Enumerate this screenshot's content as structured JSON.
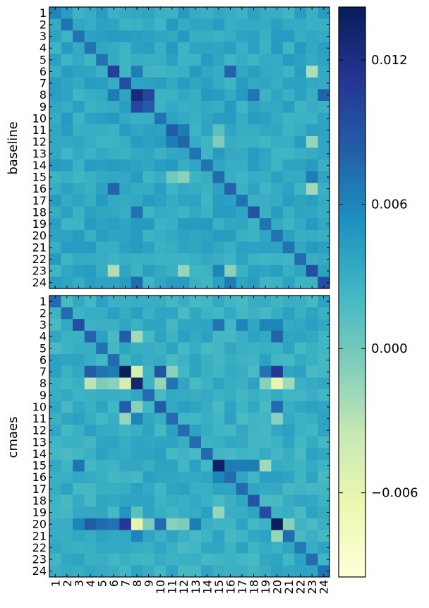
{
  "chart_data": {
    "type": "heatmap",
    "colormap": "YlGnBu",
    "vmin": -0.0095,
    "vmax": 0.0142,
    "colorbar": {
      "ticks": [
        -0.006,
        0.0,
        0.006,
        0.012
      ],
      "tick_labels": [
        "−0.006",
        "0.000",
        "0.006",
        "0.012"
      ]
    },
    "row_labels": [
      "1",
      "2",
      "3",
      "4",
      "5",
      "6",
      "7",
      "8",
      "9",
      "10",
      "11",
      "12",
      "13",
      "14",
      "15",
      "16",
      "17",
      "18",
      "19",
      "20",
      "21",
      "22",
      "23",
      "24"
    ],
    "col_labels": [
      "1",
      "2",
      "3",
      "4",
      "5",
      "6",
      "7",
      "8",
      "9",
      "10",
      "11",
      "12",
      "13",
      "14",
      "15",
      "16",
      "17",
      "18",
      "19",
      "20",
      "21",
      "22",
      "23",
      "24"
    ],
    "panels": [
      {
        "ylabel": "baseline",
        "diag_peak": 0.007,
        "background": 0.0035,
        "strong_cells": [
          [
            6,
            6,
            0.0105
          ],
          [
            7,
            7,
            0.0095
          ],
          [
            8,
            8,
            0.0125
          ],
          [
            8,
            9,
            0.01
          ],
          [
            9,
            8,
            0.01
          ],
          [
            9,
            9,
            0.0085
          ],
          [
            11,
            11,
            0.0085
          ],
          [
            11,
            12,
            0.0065
          ],
          [
            12,
            11,
            0.0065
          ],
          [
            12,
            12,
            0.008
          ],
          [
            15,
            15,
            0.0075
          ],
          [
            16,
            16,
            0.008
          ],
          [
            18,
            18,
            0.009
          ],
          [
            22,
            22,
            0.0075
          ],
          [
            23,
            23,
            0.0095
          ],
          [
            24,
            24,
            0.0095
          ],
          [
            1,
            1,
            0.006
          ],
          [
            6,
            16,
            0.008
          ],
          [
            16,
            6,
            0.008
          ],
          [
            8,
            18,
            0.007
          ],
          [
            18,
            8,
            0.007
          ],
          [
            6,
            8,
            0.0065
          ],
          [
            8,
            6,
            0.0065
          ],
          [
            8,
            24,
            0.008
          ],
          [
            24,
            8,
            0.0075
          ],
          [
            24,
            16,
            0.0065
          ],
          [
            15,
            23,
            0.0065
          ],
          [
            23,
            15,
            0.006
          ],
          [
            6,
            23,
            -0.0025
          ],
          [
            23,
            6,
            -0.0025
          ],
          [
            23,
            12,
            -0.0015
          ],
          [
            12,
            23,
            -0.0015
          ],
          [
            15,
            12,
            -0.001
          ],
          [
            12,
            15,
            -0.0005
          ],
          [
            16,
            23,
            -0.002
          ],
          [
            23,
            16,
            -0.001
          ],
          [
            15,
            11,
            0.0
          ],
          [
            11,
            15,
            0.001
          ]
        ]
      },
      {
        "ylabel": "cmaes",
        "diag_peak": 0.0075,
        "background": 0.003,
        "strong_cells": [
          [
            7,
            7,
            0.014
          ],
          [
            8,
            8,
            0.013
          ],
          [
            15,
            15,
            0.0135
          ],
          [
            20,
            20,
            0.014
          ],
          [
            3,
            3,
            0.0095
          ],
          [
            19,
            19,
            0.0095
          ],
          [
            10,
            10,
            0.0085
          ],
          [
            18,
            18,
            0.009
          ],
          [
            16,
            16,
            0.0075
          ],
          [
            4,
            4,
            0.008
          ],
          [
            5,
            5,
            0.007
          ],
          [
            22,
            22,
            0.0065
          ],
          [
            7,
            20,
            0.011
          ],
          [
            20,
            7,
            0.011
          ],
          [
            7,
            8,
            -0.0045
          ],
          [
            8,
            7,
            -0.0045
          ],
          [
            8,
            20,
            -0.006
          ],
          [
            20,
            8,
            -0.006
          ],
          [
            7,
            10,
            0.009
          ],
          [
            10,
            7,
            0.0085
          ],
          [
            20,
            10,
            0.0075
          ],
          [
            10,
            20,
            0.0075
          ],
          [
            4,
            7,
            0.0085
          ],
          [
            7,
            4,
            0.0085
          ],
          [
            4,
            20,
            0.008
          ],
          [
            20,
            4,
            0.0085
          ],
          [
            20,
            5,
            0.0075
          ],
          [
            20,
            6,
            0.007
          ],
          [
            7,
            5,
            0.007
          ],
          [
            7,
            6,
            0.0065
          ],
          [
            15,
            19,
            -0.002
          ],
          [
            19,
            15,
            -0.0015
          ],
          [
            15,
            16,
            0.0065
          ],
          [
            16,
            15,
            0.006
          ],
          [
            15,
            17,
            0.0065
          ],
          [
            15,
            18,
            0.0065
          ],
          [
            3,
            15,
            0.007
          ],
          [
            15,
            3,
            0.007
          ],
          [
            3,
            20,
            0.006
          ],
          [
            3,
            17,
            0.006
          ],
          [
            8,
            11,
            0.007
          ],
          [
            11,
            8,
            0.006
          ],
          [
            4,
            8,
            -0.002
          ],
          [
            8,
            4,
            -0.003
          ],
          [
            8,
            10,
            -0.0015
          ],
          [
            10,
            8,
            -0.001
          ],
          [
            11,
            7,
            -0.0015
          ],
          [
            7,
            11,
            -0.001
          ],
          [
            20,
            11,
            -0.001
          ],
          [
            11,
            20,
            -0.001
          ],
          [
            8,
            5,
            -0.0005
          ],
          [
            8,
            6,
            -0.001
          ],
          [
            20,
            9,
            -0.0005
          ],
          [
            20,
            12,
            -0.0005
          ],
          [
            8,
            19,
            -0.001
          ],
          [
            19,
            8,
            0.001
          ],
          [
            7,
            19,
            0.007
          ],
          [
            19,
            7,
            0.005
          ],
          [
            8,
            21,
            -0.002
          ],
          [
            21,
            8,
            0.006
          ],
          [
            20,
            21,
            -0.001
          ],
          [
            21,
            20,
            -0.0015
          ],
          [
            20,
            13,
            0.0065
          ],
          [
            20,
            3,
            0.006
          ],
          [
            3,
            19,
            0.006
          ],
          [
            24,
            24,
            0.007
          ]
        ]
      }
    ]
  }
}
